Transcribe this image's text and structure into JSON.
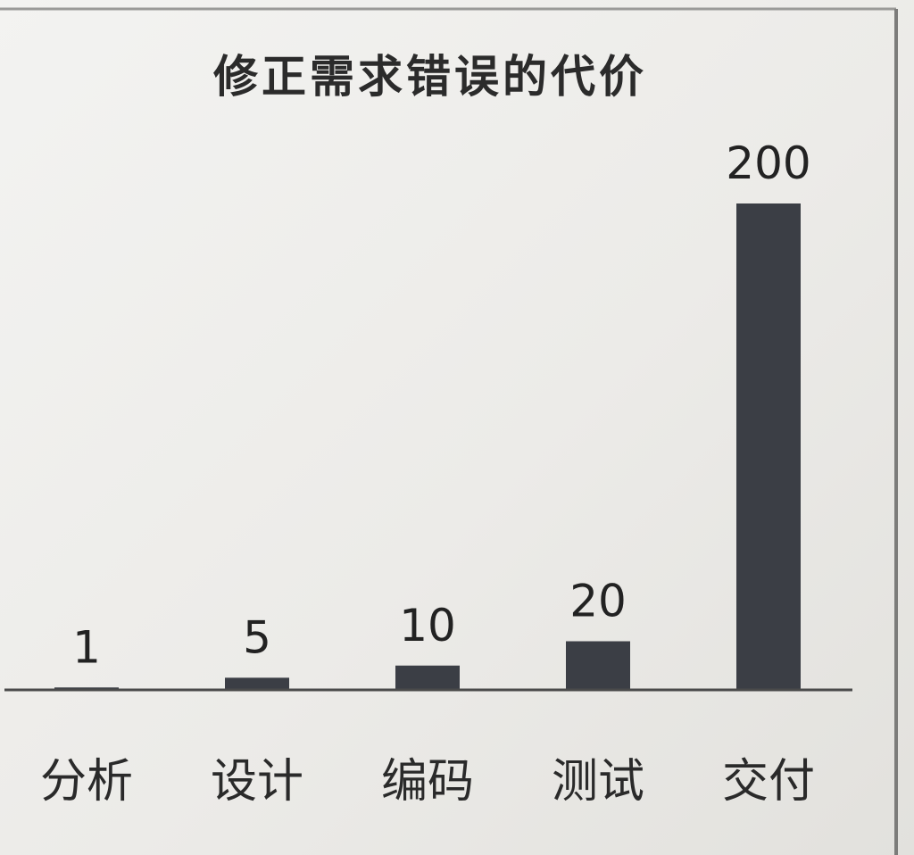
{
  "chart_data": {
    "type": "bar",
    "title": "修正需求错误的代价",
    "categories": [
      "分析",
      "设计",
      "编码",
      "测试",
      "交付"
    ],
    "values": [
      1,
      5,
      10,
      20,
      200
    ],
    "ylim": [
      0,
      200
    ],
    "grid": false,
    "legend": "none",
    "colors": {
      "bar": "#3b3e45",
      "axis": "#4a4a4a"
    }
  }
}
